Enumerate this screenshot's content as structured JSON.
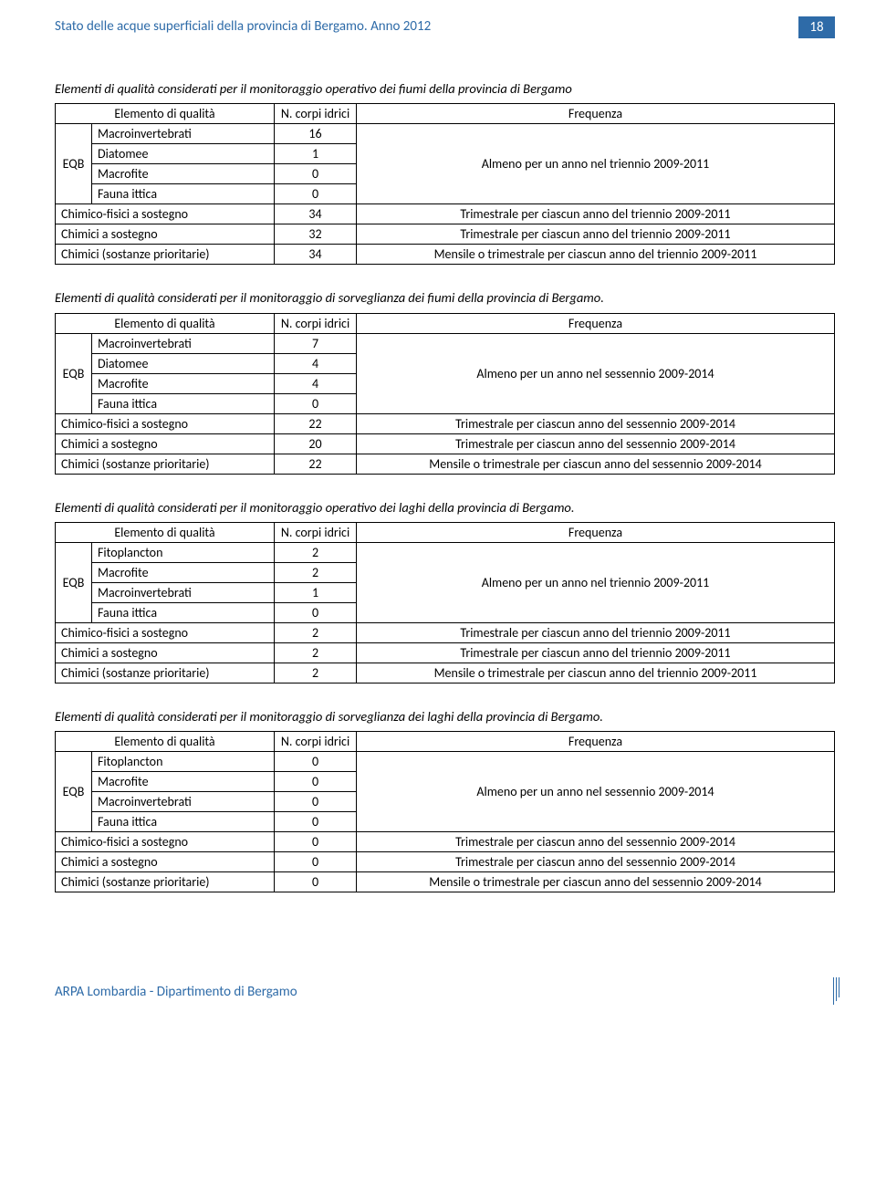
{
  "header": {
    "title": "Stato delle acque superficiali della provincia di Bergamo. Anno 2012",
    "page_number": "18"
  },
  "tables": [
    {
      "caption": "Elementi di qualità considerati per il monitoraggio operativo dei fiumi della provincia di Bergamo",
      "h_col1": "Elemento di qualità",
      "h_col2": "N. corpi idrici",
      "h_col3": "Frequenza",
      "eqb_label": "EQB",
      "eqb_rows": [
        {
          "name": "Macroinvertebrati",
          "n": "16"
        },
        {
          "name": "Diatomee",
          "n": "1"
        },
        {
          "name": "Macrofite",
          "n": "0"
        },
        {
          "name": "Fauna ittica",
          "n": "0"
        }
      ],
      "eqb_freq": "Almeno per un anno nel triennio 2009-2011",
      "bottom_rows": [
        {
          "name": "Chimico-fisici a sostegno",
          "n": "34",
          "freq": "Trimestrale per ciascun anno del triennio 2009-2011"
        },
        {
          "name": "Chimici a sostegno",
          "n": "32",
          "freq": "Trimestrale per ciascun anno del triennio 2009-2011"
        },
        {
          "name": "Chimici (sostanze prioritarie)",
          "n": "34",
          "freq": "Mensile o trimestrale per ciascun anno del triennio 2009-2011"
        }
      ]
    },
    {
      "caption": "Elementi di qualità considerati per il monitoraggio di sorveglianza dei fiumi della provincia di Bergamo.",
      "h_col1": "Elemento di qualità",
      "h_col2": "N. corpi idrici",
      "h_col3": "Frequenza",
      "eqb_label": "EQB",
      "eqb_rows": [
        {
          "name": "Macroinvertebrati",
          "n": "7"
        },
        {
          "name": "Diatomee",
          "n": "4"
        },
        {
          "name": "Macrofite",
          "n": "4"
        },
        {
          "name": "Fauna ittica",
          "n": "0"
        }
      ],
      "eqb_freq": "Almeno per un anno nel sessennio 2009-2014",
      "bottom_rows": [
        {
          "name": "Chimico-fisici a sostegno",
          "n": "22",
          "freq": "Trimestrale per ciascun anno del sessennio 2009-2014"
        },
        {
          "name": "Chimici a sostegno",
          "n": "20",
          "freq": "Trimestrale per ciascun anno del sessennio 2009-2014"
        },
        {
          "name": "Chimici (sostanze prioritarie)",
          "n": "22",
          "freq": "Mensile o trimestrale per ciascun anno del sessennio 2009-2014"
        }
      ]
    },
    {
      "caption": "Elementi di qualità considerati per il monitoraggio operativo dei laghi della provincia di Bergamo.",
      "h_col1": "Elemento di qualità",
      "h_col2": "N. corpi idrici",
      "h_col3": "Frequenza",
      "eqb_label": "EQB",
      "eqb_rows": [
        {
          "name": "Fitoplancton",
          "n": "2"
        },
        {
          "name": "Macrofite",
          "n": "2"
        },
        {
          "name": "Macroinvertebrati",
          "n": "1"
        },
        {
          "name": "Fauna ittica",
          "n": "0"
        }
      ],
      "eqb_freq": "Almeno per un anno nel triennio 2009-2011",
      "bottom_rows": [
        {
          "name": "Chimico-fisici a sostegno",
          "n": "2",
          "freq": "Trimestrale per ciascun anno del triennio 2009-2011"
        },
        {
          "name": "Chimici a sostegno",
          "n": "2",
          "freq": "Trimestrale per ciascun anno del triennio 2009-2011"
        },
        {
          "name": "Chimici (sostanze prioritarie)",
          "n": "2",
          "freq": "Mensile o trimestrale per ciascun anno del triennio 2009-2011"
        }
      ]
    },
    {
      "caption": "Elementi di qualità considerati per il monitoraggio di sorveglianza dei laghi della provincia di Bergamo.",
      "h_col1": "Elemento di qualità",
      "h_col2": "N. corpi idrici",
      "h_col3": "Frequenza",
      "eqb_label": "EQB",
      "eqb_rows": [
        {
          "name": "Fitoplancton",
          "n": "0"
        },
        {
          "name": "Macrofite",
          "n": "0"
        },
        {
          "name": "Macroinvertebrati",
          "n": "0"
        },
        {
          "name": "Fauna ittica",
          "n": "0"
        }
      ],
      "eqb_freq": "Almeno per un anno nel sessennio 2009-2014",
      "bottom_rows": [
        {
          "name": "Chimico-fisici a sostegno",
          "n": "0",
          "freq": "Trimestrale per ciascun anno del sessennio 2009-2014"
        },
        {
          "name": "Chimici a sostegno",
          "n": "0",
          "freq": "Trimestrale per ciascun anno del sessennio 2009-2014"
        },
        {
          "name": "Chimici (sostanze prioritarie)",
          "n": "0",
          "freq": "Mensile o trimestrale per ciascun anno del sessennio 2009-2014"
        }
      ]
    }
  ],
  "footer": {
    "text": "ARPA Lombardia - Dipartimento di Bergamo"
  }
}
